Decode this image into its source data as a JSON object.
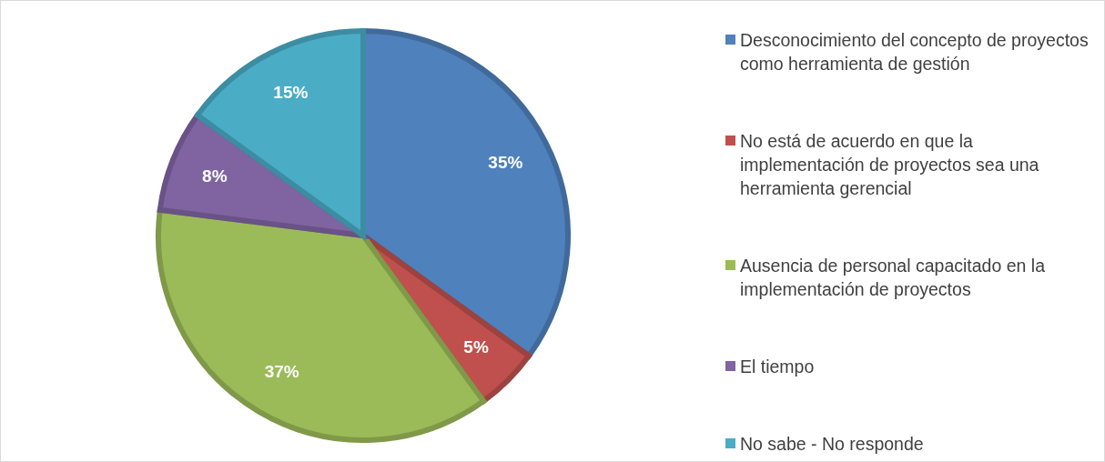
{
  "chart_data": {
    "type": "pie",
    "categories": [
      "Desconocimiento del concepto de proyectos como herramienta de gestión",
      "No está de acuerdo en que la implementación de proyectos sea una herramienta gerencial",
      "Ausencia de personal capacitado en la implementación de proyectos",
      "El tiempo",
      "No sabe - No responde"
    ],
    "values": [
      35,
      5,
      37,
      8,
      15
    ],
    "colors": [
      "#4f81bd",
      "#c0504d",
      "#9bbb59",
      "#8064a2",
      "#4bacc6"
    ],
    "value_labels": [
      "35%",
      "5%",
      "37%",
      "8%",
      "15%"
    ],
    "legend": "right"
  }
}
